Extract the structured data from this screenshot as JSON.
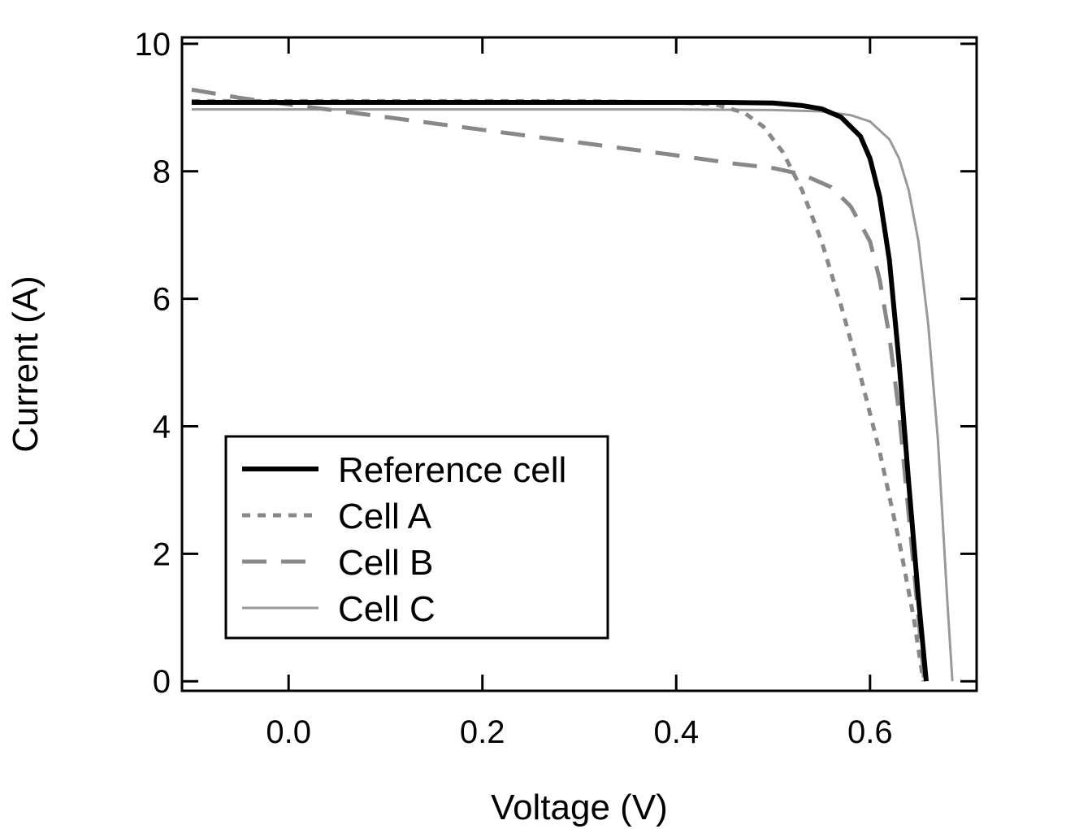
{
  "chart_data": {
    "type": "line",
    "title": "",
    "xlabel": "Voltage (V)",
    "ylabel": "Current (A)",
    "xlim": [
      -0.11,
      0.71
    ],
    "ylim": [
      -0.15,
      10.1
    ],
    "xticks": [
      0.0,
      0.2,
      0.4,
      0.6
    ],
    "xtick_labels": [
      "0.0",
      "0.2",
      "0.4",
      "0.6"
    ],
    "yticks": [
      0,
      2,
      4,
      6,
      8,
      10
    ],
    "ytick_labels": [
      "0",
      "2",
      "4",
      "6",
      "8",
      "10"
    ],
    "grid": false,
    "legend_position": "bottom-left",
    "series": [
      {
        "name": "Reference cell",
        "color": "#000000",
        "style": "solid",
        "points": [
          [
            -0.1,
            9.08
          ],
          [
            0.0,
            9.08
          ],
          [
            0.1,
            9.08
          ],
          [
            0.2,
            9.08
          ],
          [
            0.3,
            9.08
          ],
          [
            0.4,
            9.08
          ],
          [
            0.45,
            9.08
          ],
          [
            0.5,
            9.07
          ],
          [
            0.53,
            9.03
          ],
          [
            0.55,
            8.98
          ],
          [
            0.57,
            8.85
          ],
          [
            0.59,
            8.55
          ],
          [
            0.6,
            8.2
          ],
          [
            0.61,
            7.6
          ],
          [
            0.62,
            6.6
          ],
          [
            0.63,
            5.0
          ],
          [
            0.64,
            3.1
          ],
          [
            0.65,
            1.3
          ],
          [
            0.658,
            0.0
          ]
        ]
      },
      {
        "name": "Cell A",
        "color": "#888888",
        "style": "dotted",
        "points": [
          [
            -0.1,
            9.1
          ],
          [
            0.0,
            9.1
          ],
          [
            0.1,
            9.1
          ],
          [
            0.2,
            9.1
          ],
          [
            0.3,
            9.1
          ],
          [
            0.4,
            9.08
          ],
          [
            0.44,
            9.05
          ],
          [
            0.47,
            8.92
          ],
          [
            0.49,
            8.7
          ],
          [
            0.51,
            8.3
          ],
          [
            0.53,
            7.7
          ],
          [
            0.55,
            6.9
          ],
          [
            0.57,
            5.9
          ],
          [
            0.59,
            4.8
          ],
          [
            0.61,
            3.6
          ],
          [
            0.63,
            2.2
          ],
          [
            0.645,
            1.0
          ],
          [
            0.655,
            0.0
          ]
        ]
      },
      {
        "name": "Cell B",
        "color": "#888888",
        "style": "dashed",
        "points": [
          [
            -0.1,
            9.28
          ],
          [
            -0.05,
            9.15
          ],
          [
            0.0,
            9.05
          ],
          [
            0.05,
            8.95
          ],
          [
            0.1,
            8.85
          ],
          [
            0.2,
            8.65
          ],
          [
            0.3,
            8.45
          ],
          [
            0.4,
            8.25
          ],
          [
            0.46,
            8.12
          ],
          [
            0.5,
            8.05
          ],
          [
            0.53,
            7.95
          ],
          [
            0.56,
            7.75
          ],
          [
            0.58,
            7.45
          ],
          [
            0.6,
            6.9
          ],
          [
            0.61,
            6.3
          ],
          [
            0.62,
            5.4
          ],
          [
            0.63,
            4.2
          ],
          [
            0.64,
            2.6
          ],
          [
            0.65,
            1.0
          ],
          [
            0.656,
            0.0
          ]
        ]
      },
      {
        "name": "Cell C",
        "color": "#999999",
        "style": "thin",
        "points": [
          [
            -0.1,
            8.97
          ],
          [
            0.0,
            8.97
          ],
          [
            0.1,
            8.97
          ],
          [
            0.2,
            8.97
          ],
          [
            0.3,
            8.97
          ],
          [
            0.4,
            8.97
          ],
          [
            0.5,
            8.96
          ],
          [
            0.55,
            8.94
          ],
          [
            0.58,
            8.88
          ],
          [
            0.6,
            8.78
          ],
          [
            0.62,
            8.5
          ],
          [
            0.63,
            8.2
          ],
          [
            0.64,
            7.7
          ],
          [
            0.65,
            6.9
          ],
          [
            0.66,
            5.6
          ],
          [
            0.67,
            3.8
          ],
          [
            0.675,
            2.5
          ],
          [
            0.68,
            1.2
          ],
          [
            0.685,
            0.0
          ]
        ]
      }
    ]
  }
}
